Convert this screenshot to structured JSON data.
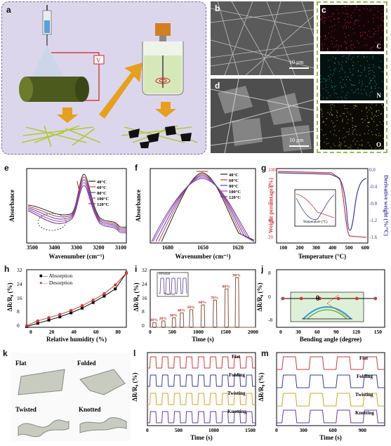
{
  "panels": {
    "a": {
      "label": "a",
      "voltage": "V"
    },
    "b": {
      "label": "b",
      "scale": "10 μm"
    },
    "c": {
      "label": "c",
      "elements": [
        "C",
        "N",
        "O"
      ],
      "colors": [
        "#e0304a",
        "#28b0a0",
        "#d8c840"
      ]
    },
    "d": {
      "label": "d",
      "scale": "10 μm"
    },
    "e": {
      "label": "e",
      "xlabel": "Wavenumber (cm⁻¹)",
      "ylabel": "Absorbance",
      "xticks": [
        "3500",
        "3400",
        "3300",
        "3200",
        "3100"
      ]
    },
    "f": {
      "label": "f",
      "xlabel": "Wavenumber (cm⁻¹)",
      "ylabel": "Absorbance",
      "xticks": [
        "1680",
        "1650",
        "1620"
      ]
    },
    "g": {
      "label": "g",
      "xlabel": "Temperature (°C)",
      "ylabel_left": "Weight percentage (%)",
      "ylabel_right": "Derivative weight (%/°C)",
      "xticks": [
        "100",
        "200",
        "300",
        "400",
        "500",
        "600"
      ],
      "yticks_left": [
        "100",
        "80",
        "60",
        "40",
        "20"
      ],
      "yticks_right": [
        "0.0",
        "-0.4",
        "-0.8",
        "-1.2",
        "-1.6"
      ],
      "inset_xlabel": "Temperature (°C)"
    },
    "h": {
      "label": "h",
      "xlabel": "Relative humidity (%)",
      "ylabel": "ΔR/R₀ (%)",
      "xticks": [
        "0",
        "20",
        "40",
        "60",
        "80"
      ],
      "yticks": [
        "0",
        "8",
        "16",
        "24",
        "32"
      ]
    },
    "i": {
      "label": "i",
      "xlabel": "Time (s)",
      "ylabel": "ΔR/R₀ (%)",
      "xticks": [
        "0",
        "500",
        "1000",
        "1500",
        "2000"
      ],
      "yticks": [
        "0",
        "8",
        "16",
        "24",
        "32"
      ],
      "inset_label": "90%RH",
      "inset_xlabel": "Time (s)",
      "rh_labels": [
        "10%",
        "20%",
        "30%",
        "40%",
        "50%",
        "60%",
        "70%",
        "80%",
        "90%"
      ]
    },
    "j": {
      "label": "j",
      "xlabel": "Bending angle (degree)",
      "ylabel": "ΔR/R₀ (%)",
      "xticks": [
        "0",
        "30",
        "60",
        "90",
        "120",
        "150"
      ],
      "yticks": [
        "8",
        "0",
        "-8"
      ],
      "theta": "θ"
    },
    "k": {
      "label": "k",
      "states": [
        "Flat",
        "Folded",
        "Twisted",
        "Knotted"
      ]
    },
    "l": {
      "label": "l",
      "xlabel": "Time (s)",
      "ylabel": "ΔR/R₀ (%)",
      "xticks": [
        "0",
        "500",
        "1000",
        "1500"
      ],
      "traces": [
        "Flat",
        "Folding",
        "Twisting",
        "Knotting"
      ]
    },
    "m": {
      "label": "m",
      "xlabel": "Time (s)",
      "ylabel": "ΔR/R₀ (%)",
      "xticks": [
        "0",
        "300",
        "600",
        "900"
      ],
      "traces": [
        "Flat",
        "Folding",
        "Twisting",
        "Knotting"
      ]
    }
  },
  "legend_temps": [
    "40°C",
    "60°C",
    "80°C",
    "100°C",
    "120°C"
  ],
  "legend_temp_colors": [
    "#222222",
    "#d23a3a",
    "#3a4ad0",
    "#c03aa0",
    "#6a3aa0"
  ],
  "legend_h": [
    "Absorption",
    "Desorption"
  ],
  "chart_data": [
    {
      "type": "line",
      "panel": "h",
      "xlabel": "Relative humidity (%)",
      "ylabel": "ΔR/R₀ (%)",
      "xlim": [
        0,
        90
      ],
      "ylim": [
        0,
        36
      ],
      "series": [
        {
          "name": "Absorption",
          "x": [
            0,
            10,
            20,
            30,
            40,
            50,
            60,
            70,
            80,
            90
          ],
          "values": [
            0.5,
            2.5,
            4.5,
            6.5,
            9,
            12,
            15.5,
            19.5,
            24,
            34
          ]
        },
        {
          "name": "Desorption",
          "x": [
            0,
            10,
            20,
            30,
            40,
            50,
            60,
            70,
            80,
            90
          ],
          "values": [
            1,
            4,
            6,
            8,
            10.5,
            13.5,
            17,
            21,
            26.5,
            34
          ]
        }
      ]
    },
    {
      "type": "line",
      "panel": "j",
      "xlabel": "Bending angle (degree)",
      "ylabel": "ΔR/R₀ (%)",
      "xlim": [
        -10,
        165
      ],
      "ylim": [
        -10,
        10
      ],
      "series": [
        {
          "name": "",
          "x": [
            0,
            30,
            60,
            90,
            120,
            150
          ],
          "values": [
            0,
            0,
            0,
            0,
            0,
            0
          ]
        }
      ]
    },
    {
      "type": "line",
      "panel": "i",
      "xlabel": "Time (s)",
      "ylabel": "ΔR/R₀ (%)",
      "xlim": [
        0,
        2000
      ],
      "ylim": [
        0,
        36
      ],
      "series": [
        {
          "name": "peaks",
          "x": [
            80,
            250,
            450,
            600,
            780,
            1000,
            1230,
            1450,
            1650
          ],
          "values": [
            3,
            4,
            6,
            9,
            11,
            14,
            17,
            24,
            31
          ]
        }
      ]
    }
  ]
}
